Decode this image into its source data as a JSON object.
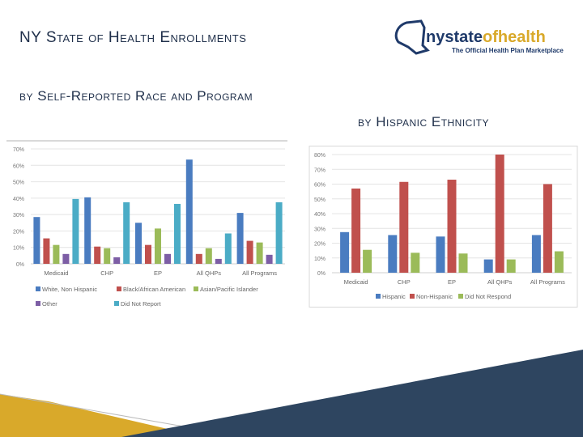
{
  "header": {
    "title": "NY State of Health Enrollments",
    "left_subtitle": "by Self-Reported Race and Program",
    "right_subtitle": "by Hispanic Ethnicity",
    "logo_text": "nystateofhealth",
    "logo_tagline": "The Official Health Plan Marketplace"
  },
  "colors": {
    "navy": "#2e4560",
    "gold": "#d9a92a",
    "title": "#1f2f4a"
  },
  "chart_data": [
    {
      "type": "bar",
      "categories": [
        "Medicaid",
        "CHP",
        "EP",
        "All QHPs",
        "All Programs"
      ],
      "ylim": [
        0,
        70
      ],
      "yticks": [
        "0%",
        "10%",
        "20%",
        "30%",
        "40%",
        "50%",
        "60%",
        "70%"
      ],
      "grid": true,
      "legend": "bottom",
      "series": [
        {
          "name": "White, Non Hispanic",
          "color": "#4a7cc0",
          "values": [
            28.5,
            40.5,
            25,
            63.5,
            31
          ]
        },
        {
          "name": "Black/African American",
          "color": "#c0504d",
          "values": [
            15.5,
            10.5,
            11.5,
            6,
            14
          ]
        },
        {
          "name": "Asian/Pacific Islander",
          "color": "#9bbb59",
          "values": [
            11.5,
            9.5,
            21.5,
            9.5,
            13
          ]
        },
        {
          "name": "Other",
          "color": "#7d5ea5",
          "values": [
            6,
            4,
            6,
            3,
            5.5
          ]
        },
        {
          "name": "Did Not Report",
          "color": "#4bacc6",
          "values": [
            39.5,
            37.5,
            36.5,
            18.5,
            37.5
          ]
        }
      ]
    },
    {
      "type": "bar",
      "categories": [
        "Medicaid",
        "CHP",
        "EP",
        "All QHPs",
        "All Programs"
      ],
      "ylim": [
        0,
        80
      ],
      "yticks": [
        "0%",
        "10%",
        "20%",
        "30%",
        "40%",
        "50%",
        "60%",
        "70%",
        "80%"
      ],
      "grid": true,
      "legend": "bottom",
      "series": [
        {
          "name": "Hispanic",
          "color": "#4a7cc0",
          "values": [
            27.5,
            25.5,
            24.5,
            9,
            25.5
          ]
        },
        {
          "name": "Non-Hispanic",
          "color": "#c0504d",
          "values": [
            57,
            61.5,
            63,
            80,
            60
          ]
        },
        {
          "name": "Did Not Respond",
          "color": "#9bbb59",
          "values": [
            15.5,
            13.5,
            13,
            9,
            14.5
          ]
        }
      ]
    }
  ]
}
